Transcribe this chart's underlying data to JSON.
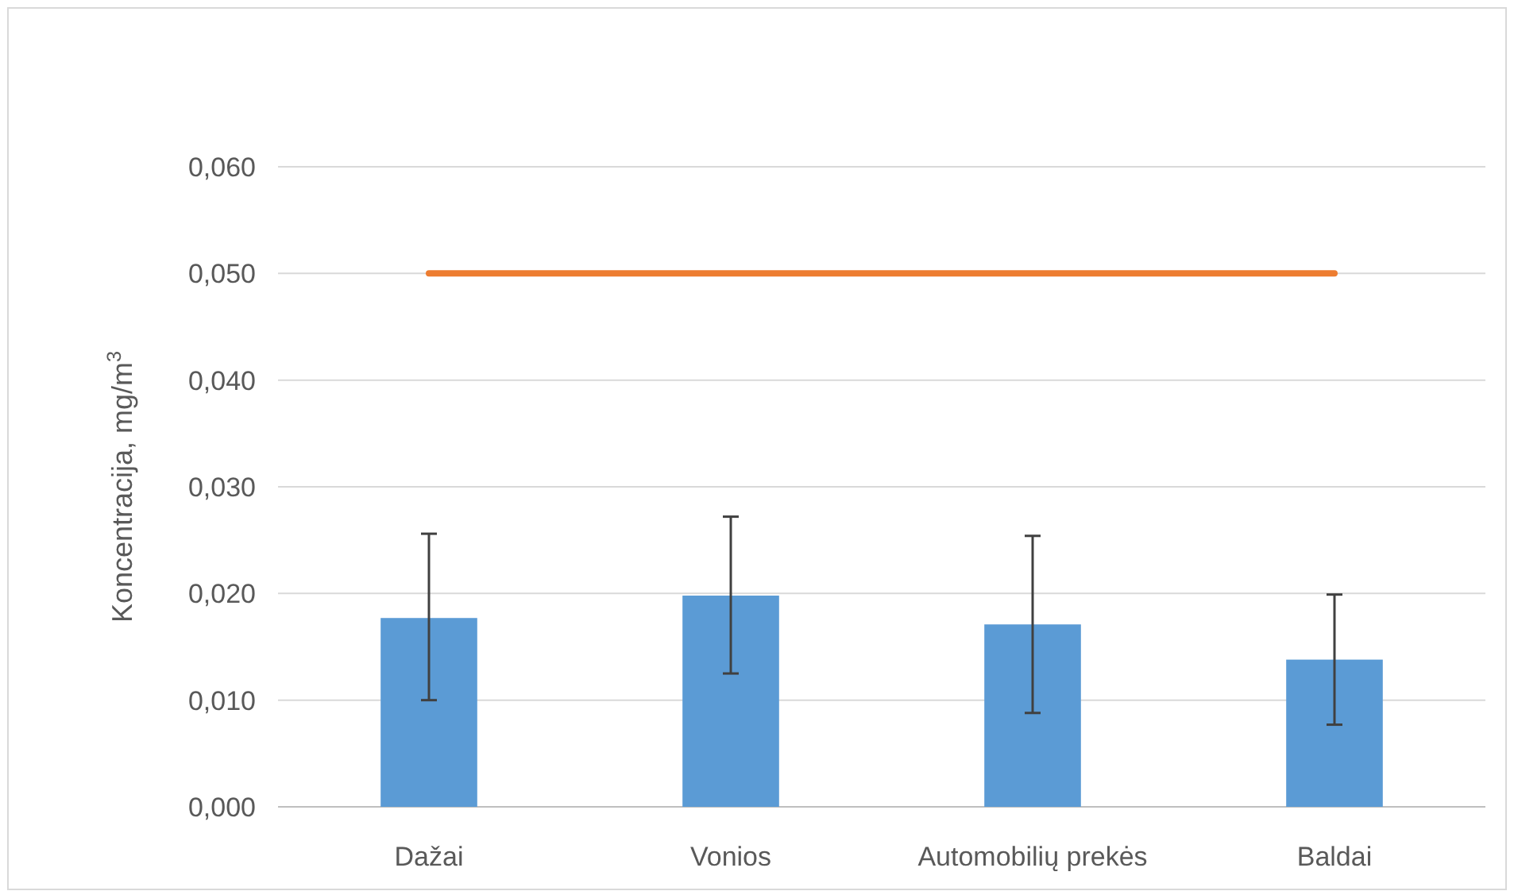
{
  "chart_data": {
    "type": "bar",
    "ylabel": "Koncentracija, mg/m$^{3}$",
    "categories": [
      "Dažai",
      "Vonios",
      "Automobilių prekės",
      "Baldai"
    ],
    "series": [
      {
        "color": "#5b9bd5",
        "values": [
          0.0177,
          0.0198,
          0.0171,
          0.0138
        ],
        "errors": [
          [
            0.01,
            0.0256
          ],
          [
            0.0125,
            0.0272
          ],
          [
            0.0088,
            0.0254
          ],
          [
            0.0077,
            0.0199
          ]
        ]
      },
      {
        "type": "line",
        "color": "#ed7d31",
        "values": [
          0.05,
          0.05,
          0.05,
          0.05
        ]
      }
    ],
    "ylim": [
      0,
      0.06
    ],
    "yticks": [
      {
        "value": 0,
        "label": "0,000"
      },
      {
        "value": 0.01,
        "label": "0,010"
      },
      {
        "value": 0.02,
        "label": "0,020"
      },
      {
        "value": 0.03,
        "label": "0,030"
      },
      {
        "value": 0.04,
        "label": "0,040"
      },
      {
        "value": 0.05,
        "label": "0,050"
      },
      {
        "value": 0.06,
        "label": "0,060"
      }
    ],
    "grid": "y",
    "marker": "none",
    "line_style": "solid"
  }
}
